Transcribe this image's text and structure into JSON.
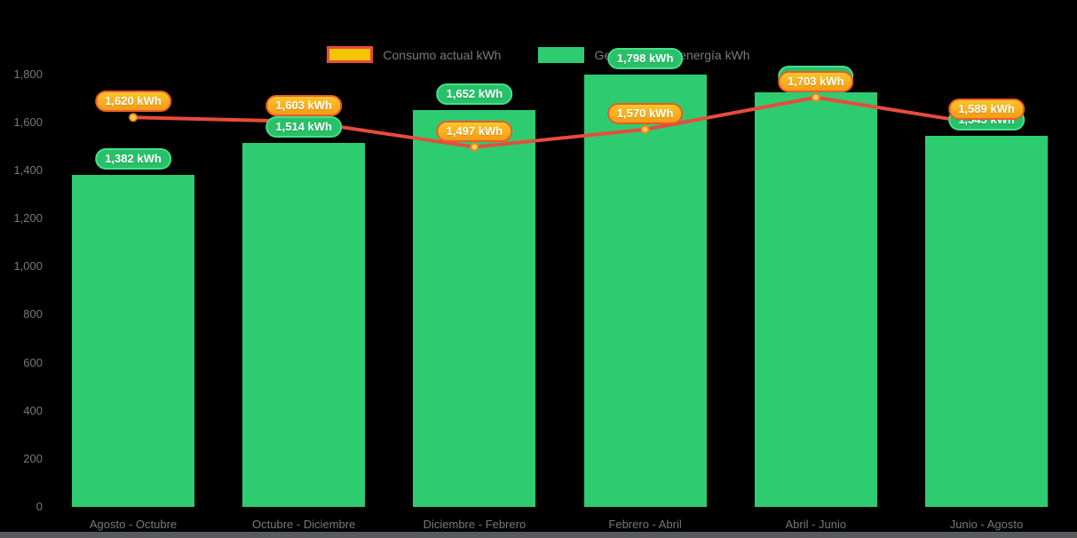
{
  "chart": {
    "background": "#000000",
    "text_color": "#77787b",
    "legend_swatch_line_fill": "#f5c400",
    "legend_swatch_line_border": "#e74c3c",
    "legend_swatch_bar_fill": "#2ecc71",
    "badge_green_fill": "#26c168",
    "badge_green_border": "#46df8b",
    "badge_orange_fill": "#f6a81d",
    "badge_orange_border": "#e95b2b",
    "marker_fill": "#fdd247",
    "marker_border": "#f0822d"
  },
  "chart_data": {
    "type": "combo",
    "categories": [
      "Agosto - Octubre",
      "Octubre - Diciembre",
      "Diciembre - Febrero",
      "Febrero - Abril",
      "Abril - Junio",
      "Junio - Agosto"
    ],
    "series": [
      {
        "name": "Consumo actual kWh",
        "type": "line",
        "color": "#e74c3c",
        "values": [
          1620,
          1603,
          1497,
          1570,
          1703,
          1589
        ]
      },
      {
        "name": "Generación de energía kWh",
        "type": "bar",
        "color": "#2ecc71",
        "values": [
          1382,
          1514,
          1652,
          1798,
          1726,
          1545
        ]
      }
    ],
    "data_labels": {
      "line": [
        "1,620 kWh",
        "1,603 kWh",
        "1,497 kWh",
        "1,570 kWh",
        "1,703 kWh",
        "1,589 kWh"
      ],
      "bar": [
        "1,382 kWh",
        "1,514 kWh",
        "1,652 kWh",
        "1,798 kWh",
        "1,726 kWh",
        "1,545 kWh"
      ]
    },
    "ylim": [
      0,
      1800
    ],
    "y_ticks": [
      "0",
      "200",
      "400",
      "600",
      "800",
      "1,000",
      "1,200",
      "1,400",
      "1,600",
      "1,800"
    ],
    "y_tick_values": [
      0,
      200,
      400,
      600,
      800,
      1000,
      1200,
      1400,
      1600,
      1800
    ],
    "data_label_suffix": " kWh",
    "grid": false,
    "legend_position": "top-center"
  }
}
